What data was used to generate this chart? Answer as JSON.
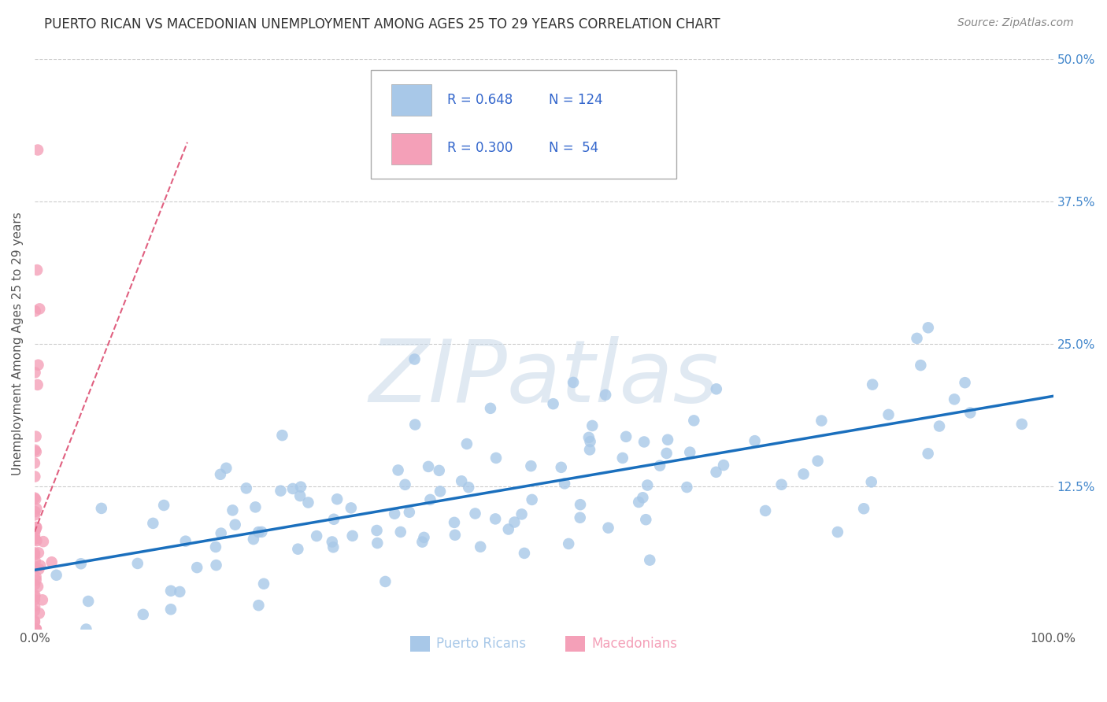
{
  "title": "PUERTO RICAN VS MACEDONIAN UNEMPLOYMENT AMONG AGES 25 TO 29 YEARS CORRELATION CHART",
  "source": "Source: ZipAtlas.com",
  "ylabel": "Unemployment Among Ages 25 to 29 years",
  "xlim": [
    0,
    1.0
  ],
  "ylim": [
    0,
    0.5
  ],
  "xticks": [
    0.0,
    0.25,
    0.5,
    0.75,
    1.0
  ],
  "xtick_labels": [
    "0.0%",
    "",
    "",
    "",
    "100.0%"
  ],
  "yticks": [
    0.0,
    0.125,
    0.25,
    0.375,
    0.5
  ],
  "ytick_labels_right": [
    "",
    "12.5%",
    "25.0%",
    "37.5%",
    "50.0%"
  ],
  "blue_color": "#a8c8e8",
  "pink_color": "#f4a0b8",
  "blue_line_color": "#1a6fbd",
  "pink_line_color": "#e06080",
  "R_blue": 0.648,
  "N_blue": 124,
  "R_pink": 0.3,
  "N_pink": 54,
  "legend_color": "#3366cc",
  "watermark": "ZIPatlas",
  "background_color": "#ffffff",
  "grid_color": "#cccccc",
  "title_fontsize": 12,
  "axis_label_fontsize": 11,
  "tick_fontsize": 11,
  "blue_seed": 42,
  "pink_seed": 99
}
